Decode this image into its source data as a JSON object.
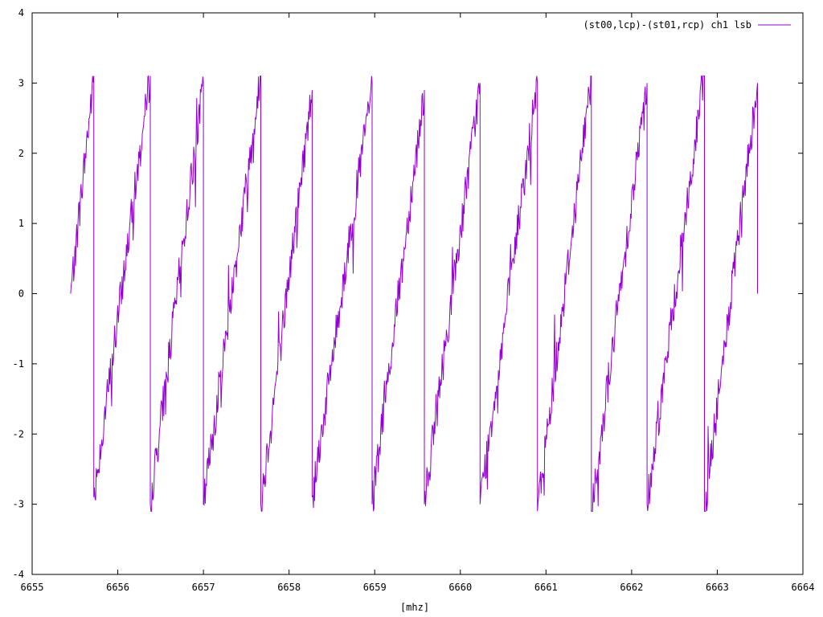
{
  "chart_data": {
    "type": "line",
    "title": "",
    "xlabel": "[mhz]",
    "ylabel": "",
    "xlim": [
      6655,
      6664
    ],
    "ylim": [
      -4,
      4
    ],
    "xticks": [
      6655,
      6656,
      6657,
      6658,
      6659,
      6660,
      6661,
      6662,
      6663,
      6664
    ],
    "yticks": [
      -4,
      -3,
      -2,
      -1,
      0,
      1,
      2,
      3,
      4
    ],
    "xtick_labels": [
      "6655",
      "6656",
      "6657",
      "6658",
      "6659",
      "6660",
      "6661",
      "6662",
      "6663",
      "6664"
    ],
    "ytick_labels": [
      "-4",
      "-3",
      "-2",
      "-1",
      "0",
      "1",
      "2",
      "3",
      "4"
    ],
    "grid": false,
    "legend_position": "top-right",
    "series": [
      {
        "name": "(st00,lcp)-(st01,rcp) ch1 lsb",
        "color": "#9400d3",
        "wrap_points": [
          {
            "x": 6655.45,
            "y": 0.0
          },
          {
            "x": 6655.72,
            "y": 3.1
          },
          {
            "x": 6655.72,
            "y": -2.9
          },
          {
            "x": 6656.38,
            "y": 3.1
          },
          {
            "x": 6656.38,
            "y": -3.0
          },
          {
            "x": 6657.0,
            "y": 3.0
          },
          {
            "x": 6657.0,
            "y": -3.0
          },
          {
            "x": 6657.67,
            "y": 3.1
          },
          {
            "x": 6657.67,
            "y": -3.0
          },
          {
            "x": 6658.27,
            "y": 2.9
          },
          {
            "x": 6658.27,
            "y": -2.9
          },
          {
            "x": 6658.97,
            "y": 3.0
          },
          {
            "x": 6658.97,
            "y": -3.0
          },
          {
            "x": 6659.58,
            "y": 2.9
          },
          {
            "x": 6659.58,
            "y": -3.0
          },
          {
            "x": 6660.23,
            "y": 3.0
          },
          {
            "x": 6660.23,
            "y": -3.0
          },
          {
            "x": 6660.9,
            "y": 3.0
          },
          {
            "x": 6660.9,
            "y": -3.1
          },
          {
            "x": 6661.53,
            "y": 3.1
          },
          {
            "x": 6661.53,
            "y": -3.1
          },
          {
            "x": 6662.18,
            "y": 3.0
          },
          {
            "x": 6662.18,
            "y": -3.0
          },
          {
            "x": 6662.85,
            "y": 3.1
          },
          {
            "x": 6662.85,
            "y": -3.1
          },
          {
            "x": 6663.47,
            "y": 3.0
          },
          {
            "x": 6663.47,
            "y": 0.0
          }
        ]
      }
    ]
  }
}
